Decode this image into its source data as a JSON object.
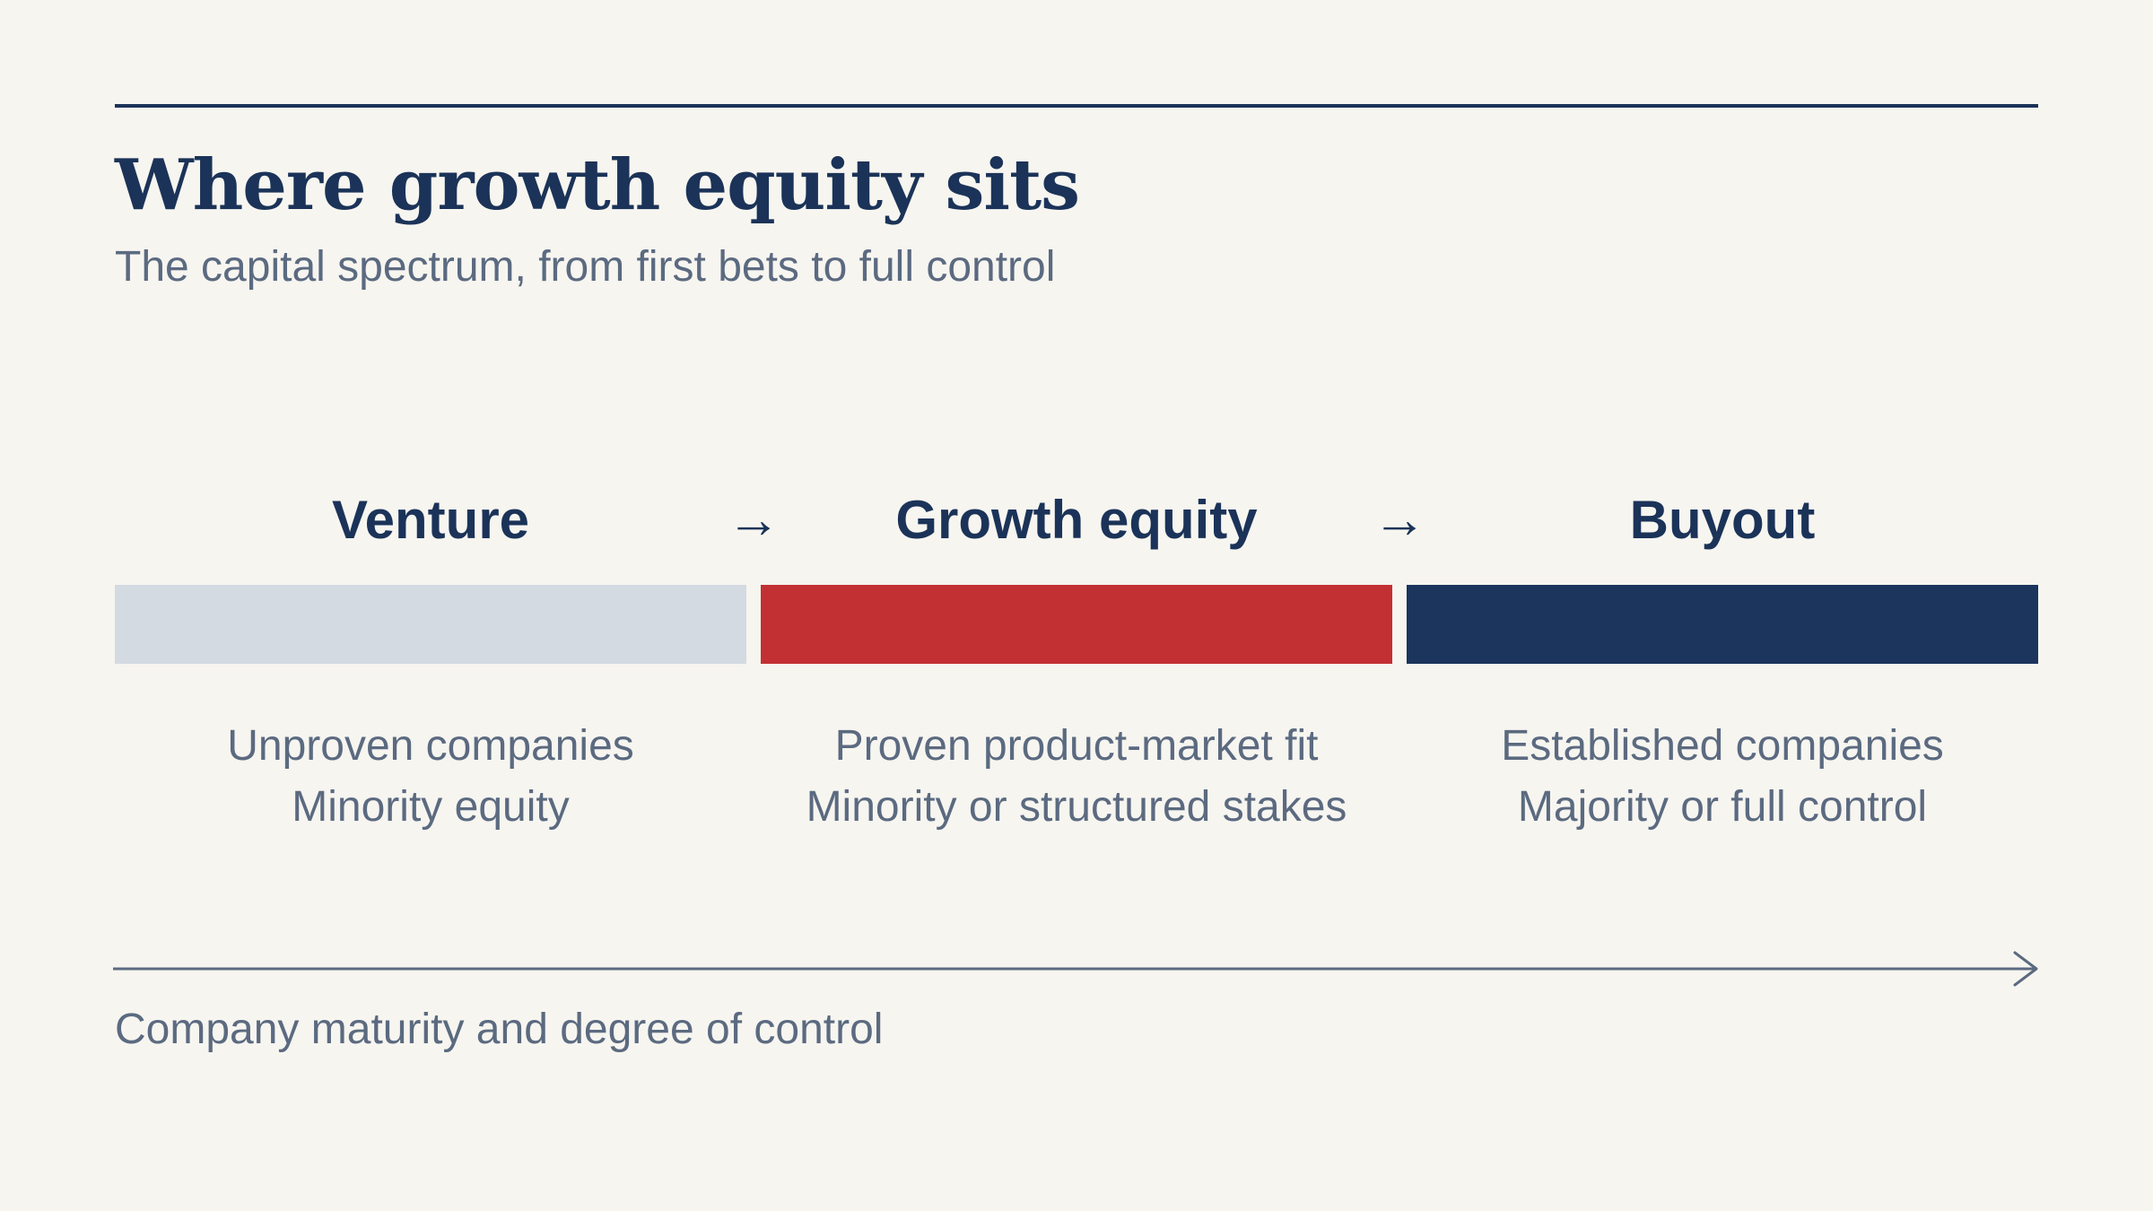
{
  "header": {
    "title": "Where growth equity sits",
    "subtitle": "The capital spectrum, from first bets to full control"
  },
  "stages": [
    {
      "name": "Venture",
      "color": "#d4dae2",
      "lines": [
        "Unproven companies",
        "Minority equity"
      ]
    },
    {
      "name": "Growth equity",
      "color": "#c33033",
      "lines": [
        "Proven product-market fit",
        "Minority or structured stakes"
      ]
    },
    {
      "name": "Buyout",
      "color": "#1b355c",
      "lines": [
        "Established companies",
        "Majority or full control"
      ]
    }
  ],
  "connector_glyph": "→",
  "axis": {
    "label": "Company maturity and degree of control",
    "direction": "right",
    "color": "#5b6a80"
  },
  "colors": {
    "background": "#f7f5f0",
    "heading": "#1b3358",
    "muted_text": "#5b6a80"
  }
}
